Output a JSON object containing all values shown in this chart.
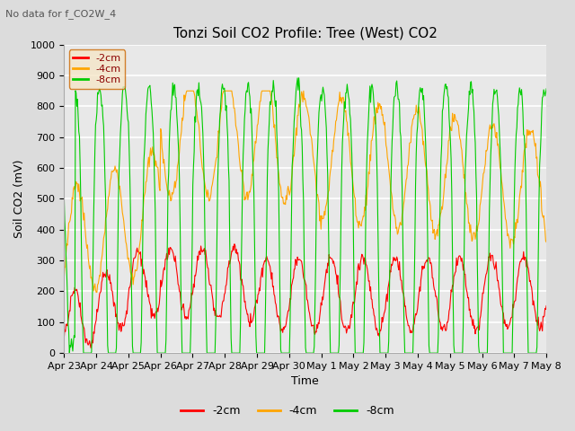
{
  "title": "Tonzi Soil CO2 Profile: Tree (West) CO2",
  "suptitle": "No data for f_CO2W_4",
  "ylabel": "Soil CO2 (mV)",
  "xlabel": "Time",
  "ylim": [
    0,
    1000
  ],
  "legend_labels": [
    "-2cm",
    "-4cm",
    "-8cm"
  ],
  "legend_colors": [
    "#ff0000",
    "#ffa500",
    "#00cc00"
  ],
  "line_colors": [
    "#ff0000",
    "#ffa500",
    "#00cc00"
  ],
  "xtick_labels": [
    "Apr 23",
    "Apr 24",
    "Apr 25",
    "Apr 26",
    "Apr 27",
    "Apr 28",
    "Apr 29",
    "Apr 30",
    "May 1",
    "May 2",
    "May 3",
    "May 4",
    "May 5",
    "May 6",
    "May 7",
    "May 8"
  ],
  "legend_box_color": "#f5e6c8",
  "legend_box_edge": "#cc6600",
  "legend_text_color": "#8b0000",
  "bg_color": "#dcdcdc",
  "plot_bg_color": "#e8e8e8",
  "grid_color": "#ffffff",
  "title_fontsize": 11,
  "axis_fontsize": 9,
  "tick_fontsize": 8
}
